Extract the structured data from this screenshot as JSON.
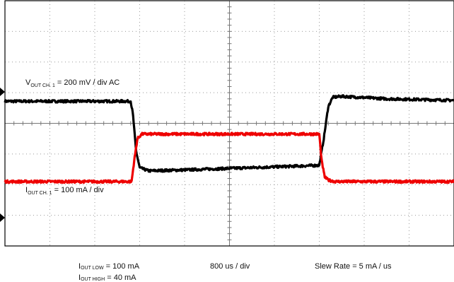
{
  "chart_data": {
    "type": "line",
    "title": "",
    "xlabel": "",
    "ylabel": "",
    "time_scale": "800 us / div",
    "x_divisions": 10,
    "y_divisions": 8,
    "grid": true,
    "colors": {
      "vout": "#000000",
      "iout": "#ee0000",
      "grid": "#999999",
      "border": "#000000"
    },
    "annotations": {
      "vout": {
        "main": "V",
        "sub": "OUT CH. 1",
        "rest": " = 200 mV / div AC"
      },
      "iout": {
        "main": "I",
        "sub": "OUT CH. 1",
        "rest": " = 100 mA / div"
      },
      "iout_low": {
        "main": "I",
        "sub": "OUT LOW",
        "rest": " = 100 mA"
      },
      "iout_high": {
        "main": "I",
        "sub": "OUT HIGH",
        "rest": " = 40 mA"
      },
      "slew": "Slew Rate = 5 mA / us"
    },
    "series": [
      {
        "key": "vout",
        "x": [
          0,
          2.8,
          2.85,
          2.92,
          3.0,
          3.2,
          4.0,
          5.0,
          6.0,
          7.0,
          7.1,
          7.2,
          7.3,
          7.5,
          8.5,
          10.0
        ],
        "y": [
          0.72,
          0.72,
          0.3,
          -0.9,
          -1.45,
          -1.55,
          -1.52,
          -1.47,
          -1.42,
          -1.37,
          -0.5,
          0.55,
          0.85,
          0.88,
          0.8,
          0.75
        ]
      },
      {
        "key": "iout",
        "x": [
          0,
          2.82,
          2.88,
          2.95,
          3.05,
          4.0,
          5.0,
          7.0,
          7.05,
          7.12,
          7.2,
          7.35,
          8.0,
          10.0
        ],
        "y": [
          -1.9,
          -1.9,
          -1.2,
          -0.5,
          -0.35,
          -0.35,
          -0.35,
          -0.35,
          -1.2,
          -1.75,
          -1.85,
          -1.9,
          -1.9,
          -1.9
        ]
      }
    ]
  }
}
